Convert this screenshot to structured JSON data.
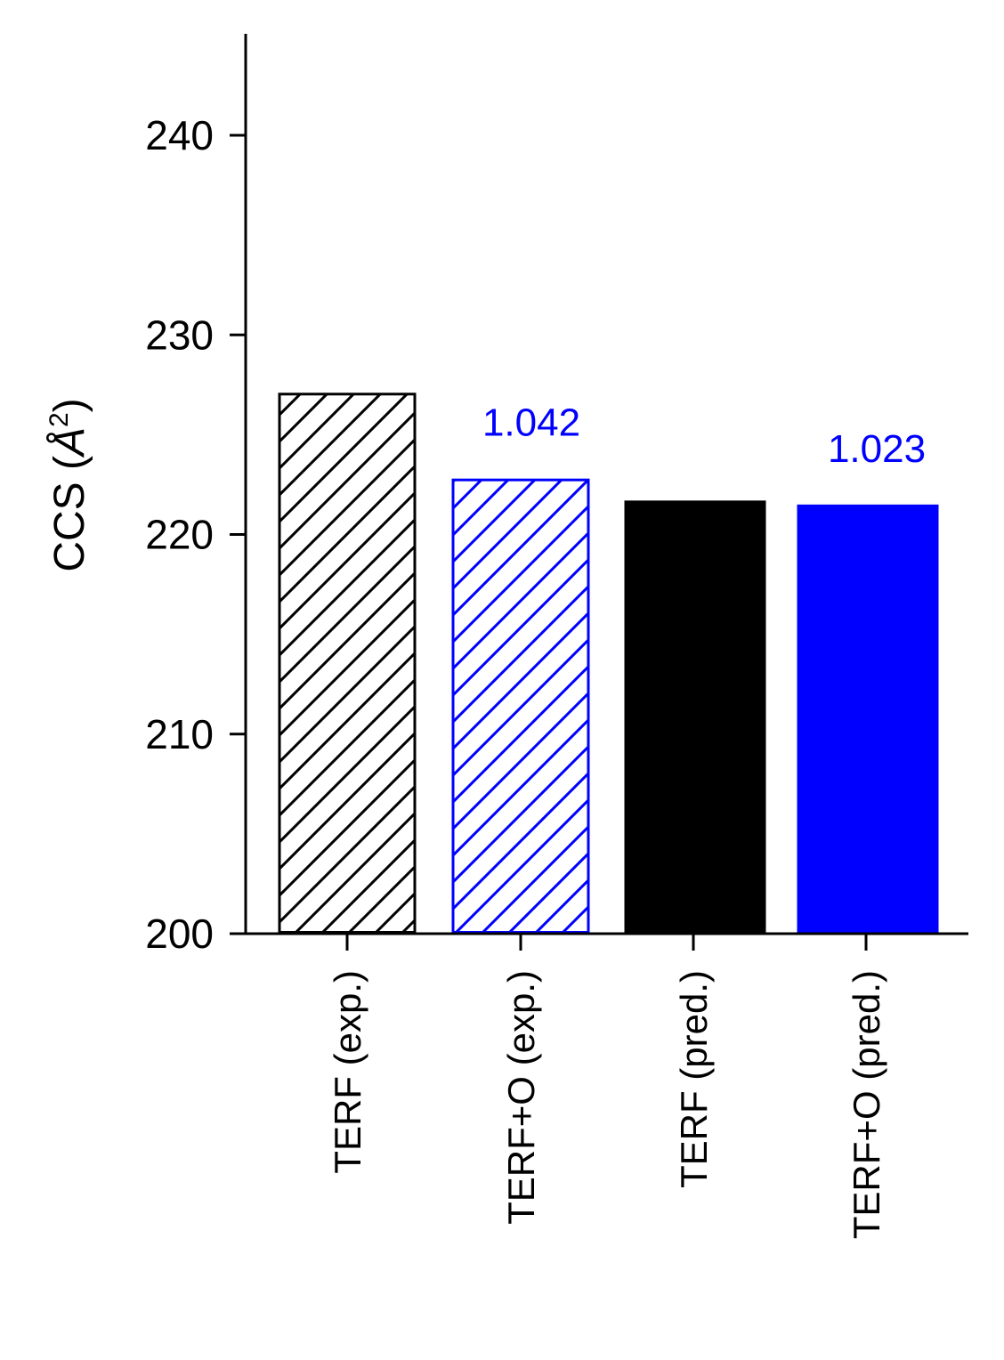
{
  "chart_data": {
    "type": "bar",
    "ylabel": "CCS (Å²)",
    "ylabel_main": "CCS (",
    "ylabel_unit": "Å",
    "ylabel_sup": "2",
    "ylabel_close": ")",
    "ylim": [
      200,
      245
    ],
    "yticks": [
      200,
      210,
      220,
      230,
      240
    ],
    "categories": [
      "TERF (exp.)",
      "TERF+O (exp.)",
      "TERF (pred.)",
      "TERF+O (pred.)"
    ],
    "values": [
      227.1,
      222.8,
      221.7,
      221.5
    ],
    "styles": [
      {
        "color": "#000000",
        "fill": "hatched"
      },
      {
        "color": "#0000ff",
        "fill": "hatched"
      },
      {
        "color": "#000000",
        "fill": "solid"
      },
      {
        "color": "#0000ff",
        "fill": "solid"
      }
    ],
    "annotations": [
      {
        "category": "TERF+O (exp.)",
        "text": "1.042",
        "color": "#0000ff"
      },
      {
        "category": "TERF+O (pred.)",
        "text": "1.023",
        "color": "#0000ff"
      }
    ],
    "grid": false,
    "legend": "none"
  }
}
